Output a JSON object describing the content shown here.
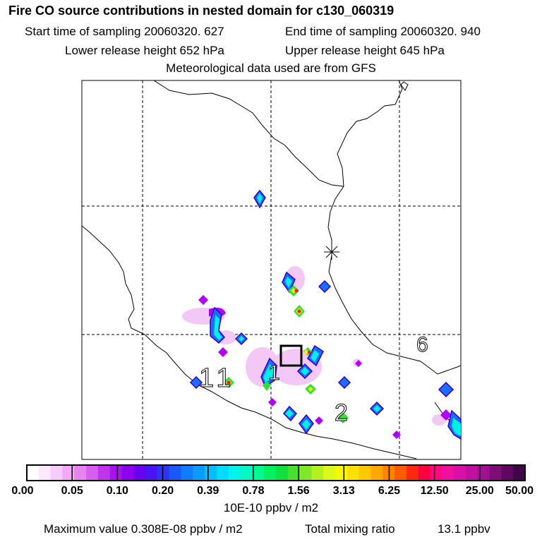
{
  "header": {
    "title": "Fire CO source contributions in nested domain for c130_060319",
    "start_time": "Start time of sampling 20060320.   627",
    "end_time": "End time of sampling 20060320.   940",
    "lower_release": "Lower release height  652 hPa",
    "upper_release": "Upper release height  645 hPa",
    "met_data": "Meteorological data used are from GFS"
  },
  "map": {
    "labels": [
      "11",
      "1",
      "2",
      "6"
    ]
  },
  "colorbar": {
    "ticks": [
      "0.00",
      "0.05",
      "0.10",
      "0.20",
      "0.39",
      "0.78",
      "1.56",
      "3.13",
      "6.25",
      "12.50",
      "25.00",
      "50.00"
    ],
    "unit": "10E-10 ppbv / m2"
  },
  "footer": {
    "max_value": "Maximum value  0.308E-08 ppbv / m2",
    "total_label": "Total mixing ratio",
    "total_value": "13.1 ppbv"
  },
  "chart_data": {
    "type": "heatmap",
    "title": "Fire CO source contributions in nested domain for c130_060319",
    "color_scale_breaks": [
      0.0,
      0.05,
      0.1,
      0.2,
      0.39,
      0.78,
      1.56,
      3.13,
      6.25,
      12.5,
      25.0,
      50.0
    ],
    "color_scale_unit": "10E-10 ppbv / m2",
    "max_value": "0.308E-08 ppbv / m2",
    "total_mixing_ratio_ppbv": 13.1,
    "grid": true
  }
}
